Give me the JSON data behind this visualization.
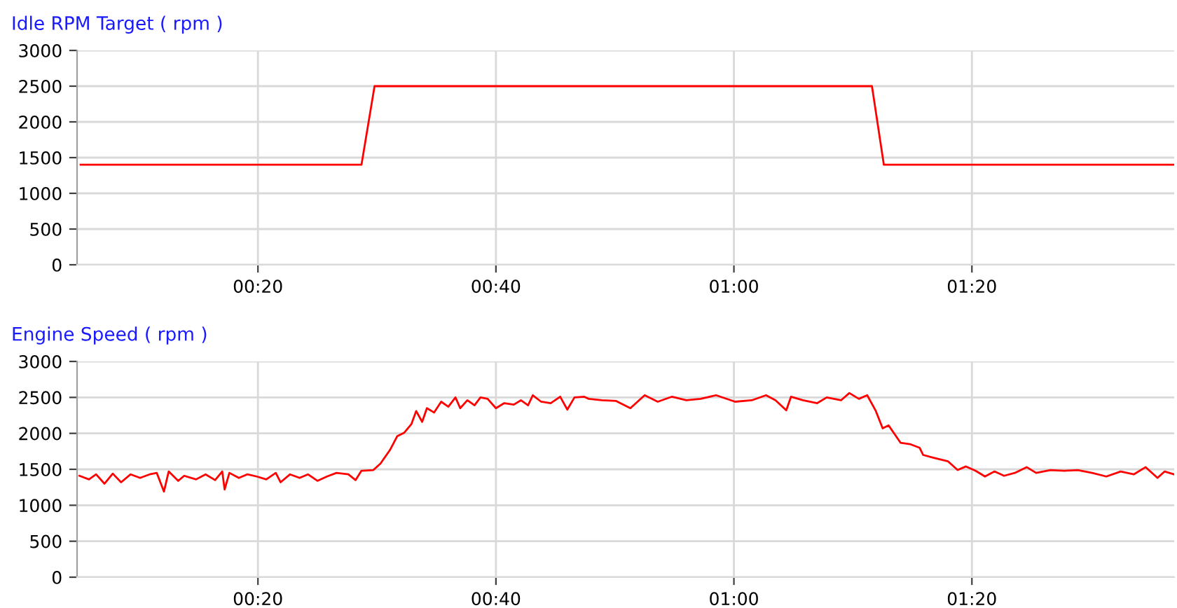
{
  "chart_data": [
    {
      "type": "line",
      "title": "Idle RPM Target ( rpm )",
      "xlim": [
        4.8,
        97
      ],
      "ylim": [
        0,
        3000
      ],
      "xticks": [
        {
          "value": 20,
          "label": "00:20"
        },
        {
          "value": 40,
          "label": "00:40"
        },
        {
          "value": 60,
          "label": "01:00"
        },
        {
          "value": 80,
          "label": "01:20"
        }
      ],
      "yticks": [
        0,
        500,
        1000,
        1500,
        2000,
        2500,
        3000
      ],
      "grid": true,
      "series": [
        {
          "color": "#ff0000",
          "x": [
            5.1,
            28.7,
            29.8,
            71.6,
            72.6,
            97.0
          ],
          "values": [
            1400,
            1400,
            2500,
            2500,
            1400,
            1400
          ]
        }
      ]
    },
    {
      "type": "line",
      "title": "Engine Speed ( rpm )",
      "xlim": [
        4.8,
        97
      ],
      "ylim": [
        0,
        3000
      ],
      "xticks": [
        {
          "value": 20,
          "label": "00:20"
        },
        {
          "value": 40,
          "label": "00:40"
        },
        {
          "value": 60,
          "label": "01:00"
        },
        {
          "value": 80,
          "label": "01:20"
        }
      ],
      "yticks": [
        0,
        500,
        1000,
        1500,
        2000,
        2500,
        3000
      ],
      "grid": true,
      "series": [
        {
          "color": "#ff0000",
          "x": [
            5.0,
            5.8,
            6.4,
            7.1,
            7.8,
            8.5,
            9.3,
            10.1,
            10.9,
            11.5,
            12.1,
            12.5,
            13.3,
            13.8,
            14.8,
            15.6,
            16.4,
            17.0,
            17.2,
            17.6,
            18.4,
            19.1,
            19.9,
            20.7,
            21.5,
            21.9,
            22.7,
            23.5,
            24.2,
            25.0,
            25.8,
            26.6,
            27.6,
            28.2,
            28.7,
            29.7,
            30.3,
            31.1,
            31.7,
            32.3,
            32.9,
            33.3,
            33.8,
            34.2,
            34.8,
            35.4,
            36.0,
            36.6,
            37.0,
            37.6,
            38.2,
            38.7,
            39.3,
            40.0,
            40.7,
            41.5,
            42.1,
            42.7,
            43.1,
            43.8,
            44.6,
            45.4,
            46.0,
            46.6,
            47.4,
            47.8,
            48.9,
            50.1,
            51.3,
            52.5,
            53.6,
            54.8,
            56.0,
            57.2,
            58.5,
            60.1,
            61.5,
            62.7,
            63.5,
            64.4,
            64.8,
            65.8,
            67.0,
            67.8,
            69.0,
            69.7,
            70.5,
            71.2,
            71.9,
            72.5,
            73.0,
            74.0,
            74.8,
            75.6,
            75.9,
            76.8,
            78.0,
            78.8,
            79.5,
            80.3,
            81.1,
            81.9,
            82.7,
            83.6,
            84.6,
            85.4,
            86.6,
            87.8,
            88.9,
            90.1,
            91.3,
            92.5,
            93.6,
            94.6,
            95.6,
            96.2,
            97.0
          ],
          "values": [
            1410,
            1360,
            1430,
            1300,
            1440,
            1320,
            1430,
            1380,
            1430,
            1450,
            1190,
            1470,
            1340,
            1410,
            1360,
            1430,
            1350,
            1470,
            1220,
            1450,
            1380,
            1430,
            1400,
            1360,
            1450,
            1320,
            1430,
            1380,
            1430,
            1340,
            1400,
            1450,
            1430,
            1350,
            1480,
            1490,
            1580,
            1770,
            1960,
            2010,
            2130,
            2310,
            2160,
            2350,
            2290,
            2440,
            2370,
            2500,
            2350,
            2460,
            2390,
            2500,
            2480,
            2350,
            2420,
            2400,
            2460,
            2390,
            2530,
            2440,
            2420,
            2510,
            2330,
            2500,
            2510,
            2480,
            2460,
            2450,
            2350,
            2530,
            2440,
            2510,
            2460,
            2480,
            2530,
            2440,
            2460,
            2530,
            2460,
            2320,
            2510,
            2460,
            2420,
            2500,
            2460,
            2560,
            2480,
            2530,
            2320,
            2070,
            2110,
            1870,
            1850,
            1800,
            1700,
            1660,
            1610,
            1490,
            1540,
            1480,
            1400,
            1470,
            1410,
            1450,
            1530,
            1450,
            1490,
            1480,
            1490,
            1450,
            1400,
            1470,
            1430,
            1530,
            1380,
            1470,
            1430
          ]
        }
      ]
    }
  ]
}
